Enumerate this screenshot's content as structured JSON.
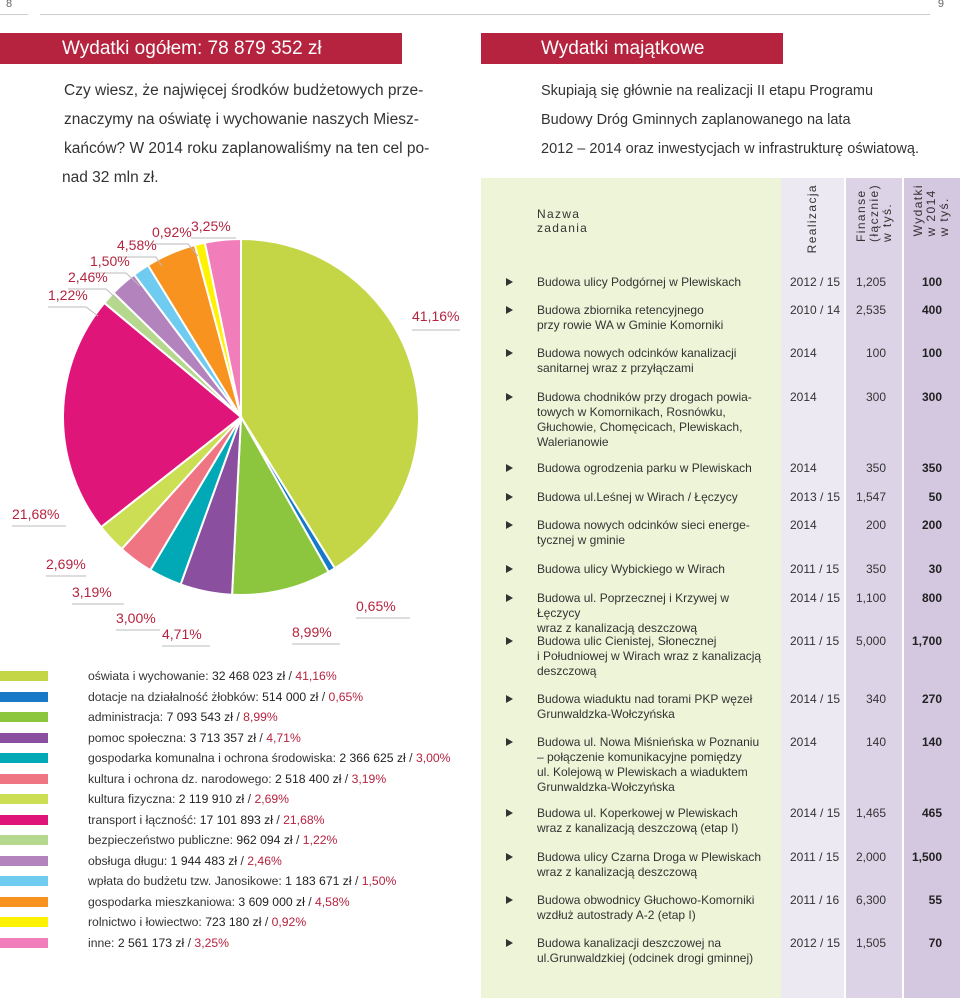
{
  "page_numbers": {
    "left": "8",
    "right": "9"
  },
  "left_title": "Wydatki ogółem: 78 879 352 zł",
  "right_title": "Wydatki majątkowe",
  "intro_left": [
    "Czy wiesz, że najwięcej środków budżetowych prze-",
    "znaczymy na oświatę i wychowanie naszych Miesz-",
    "kańców? W 2014 roku zaplanowaliśmy na ten cel po-",
    "nad 32 mln zł."
  ],
  "intro_right": [
    "Skupiają się głównie na realizacji II etapu Programu",
    "Budowy Dróg Gminnych zaplanowanego na lata",
    "2012 – 2014 oraz inwestycjach w infrastrukturę oświatową."
  ],
  "chart_data": {
    "type": "pie",
    "title": "Wydatki ogółem: 78 879 352 zł",
    "series": [
      {
        "name": "oświata i wychowanie",
        "amount": "32 468 023 zł",
        "value": 41.16,
        "label": "41,16%",
        "color": "#c4d646"
      },
      {
        "name": "dotacje na działalność żłobków",
        "amount": "514 000 zł",
        "value": 0.65,
        "label": "0,65%",
        "color": "#1779c8"
      },
      {
        "name": "administracja",
        "amount": "7 093 543 zł",
        "value": 8.99,
        "label": "8,99%",
        "color": "#8cc63f"
      },
      {
        "name": "pomoc społeczna",
        "amount": "3 713 357 zł",
        "value": 4.71,
        "label": "4,71%",
        "color": "#8b4fa0"
      },
      {
        "name": "gospodarka komunalna i ochrona środowiska",
        "amount": "2 366 625 zł",
        "value": 3.0,
        "label": "3,00%",
        "color": "#00a9b5"
      },
      {
        "name": "kultura i ochrona dz. narodowego",
        "amount": "2 518 400 zł",
        "value": 3.19,
        "label": "3,19%",
        "color": "#f07583"
      },
      {
        "name": "kultura fizyczna",
        "amount": "2 119 910 zł",
        "value": 2.69,
        "label": "2,69%",
        "color": "#ccde54"
      },
      {
        "name": "transport i łączność",
        "amount": "17 101 893 zł",
        "value": 21.68,
        "label": "21,68%",
        "color": "#e0157a"
      },
      {
        "name": "bezpieczeństwo publiczne",
        "amount": "962 094 zł",
        "value": 1.22,
        "label": "1,22%",
        "color": "#b6d88e"
      },
      {
        "name": "obsługa długu",
        "amount": "1 944 483 zł",
        "value": 2.46,
        "label": "2,46%",
        "color": "#b283bd"
      },
      {
        "name": "wpłata do budżetu tzw. Janosikowe",
        "amount": "1 183 671 zł",
        "value": 1.5,
        "label": "1,50%",
        "color": "#6fcbf0"
      },
      {
        "name": "gospodarka mieszkaniowa",
        "amount": "3 609 000 zł",
        "value": 4.58,
        "label": "4,58%",
        "color": "#f7931e"
      },
      {
        "name": "rolnictwo i łowiectwo",
        "amount": "723 180 zł",
        "value": 0.92,
        "label": "0,92%",
        "color": "#fff200"
      },
      {
        "name": "inne",
        "amount": "2 561 173 zł",
        "value": 3.25,
        "label": "3,25%",
        "color": "#f27dbb"
      }
    ]
  },
  "table": {
    "headers": {
      "name": [
        "Nazwa",
        "zadania"
      ],
      "realizacja": "Realizacja",
      "finanse": [
        "Finanse",
        "(łącznie)",
        "w tyś."
      ],
      "wydatki": [
        "Wydatki",
        "w 2014",
        "w tyś."
      ]
    },
    "colors": {
      "name_bg": "#eef4d7",
      "realizacja_bg": "#ede9f2",
      "finanse_bg": "#ddd3e6",
      "wydatki_bg": "#d4c7e0"
    },
    "rows": [
      {
        "name": [
          "Budowa ulicy Podgórnej w Plewiskach"
        ],
        "realizacja": "2012 / 15",
        "finanse": "1,205",
        "wydatki": "100"
      },
      {
        "name": [
          "Budowa zbiornika retencyjnego",
          "przy rowie WA w Gminie Komorniki"
        ],
        "realizacja": "2010 / 14",
        "finanse": "2,535",
        "wydatki": "400"
      },
      {
        "name": [
          "Budowa nowych odcinków kanalizacji",
          "sanitarnej wraz z przyłączami"
        ],
        "realizacja": "2014",
        "finanse": "100",
        "wydatki": "100"
      },
      {
        "name": [
          "Budowa chodników przy drogach powia-",
          "towych w Komornikach, Rosnówku,",
          "Głuchowie, Chomęcicach, Plewiskach,",
          "Walerianowie"
        ],
        "realizacja": "2014",
        "finanse": "300",
        "wydatki": "300"
      },
      {
        "name": [
          "Budowa ogrodzenia parku w Plewiskach"
        ],
        "realizacja": "2014",
        "finanse": "350",
        "wydatki": "350"
      },
      {
        "name": [
          "Budowa ul.Leśnej w Wirach / Łęczycy"
        ],
        "realizacja": "2013 / 15",
        "finanse": "1,547",
        "wydatki": "50"
      },
      {
        "name": [
          "Budowa nowych odcinków sieci energe-",
          "tycznej w gminie"
        ],
        "realizacja": "2014",
        "finanse": "200",
        "wydatki": "200"
      },
      {
        "name": [
          "Budowa ulicy Wybickiego w Wirach"
        ],
        "realizacja": "2011 / 15",
        "finanse": "350",
        "wydatki": "30"
      },
      {
        "name": [
          "Budowa ul. Poprzecznej i Krzywej w Łęczycy",
          "wraz z kanalizacją deszczową"
        ],
        "realizacja": "2014 / 15",
        "finanse": "1,100",
        "wydatki": "800"
      },
      {
        "name": [
          "Budowa ulic Cienistej, Słonecznej",
          "i Południowej w Wirach wraz z kanalizacją",
          "deszczową"
        ],
        "realizacja": "2011 / 15",
        "finanse": "5,000",
        "wydatki": "1,700"
      },
      {
        "name": [
          "Budowa wiaduktu nad torami PKP węzeł",
          "Grunwaldzka-Wołczyńska"
        ],
        "realizacja": "2014 / 15",
        "finanse": "340",
        "wydatki": "270"
      },
      {
        "name": [
          "Budowa ul. Nowa Miśnieńska w Poznaniu",
          "– połączenie komunikacyjne pomiędzy",
          "ul. Kolejową w Plewiskach a wiaduktem",
          "Grunwaldzka-Wołczyńska"
        ],
        "realizacja": "2014",
        "finanse": "140",
        "wydatki": "140"
      },
      {
        "name": [
          "Budowa ul. Koperkowej w Plewiskach",
          "wraz z kanalizacją deszczową (etap I)"
        ],
        "realizacja": "2014 / 15",
        "finanse": "1,465",
        "wydatki": "465"
      },
      {
        "name": [
          "Budowa ulicy Czarna Droga w Plewiskach",
          "wraz z kanalizacją deszczową"
        ],
        "realizacja": "2011 / 15",
        "finanse": "2,000",
        "wydatki": "1,500"
      },
      {
        "name": [
          "Budowa obwodnicy Głuchowo-Komorniki",
          "wzdłuż autostrady A-2 (etap I)"
        ],
        "realizacja": "2011 / 16",
        "finanse": "6,300",
        "wydatki": "55"
      },
      {
        "name": [
          "Budowa kanalizacji deszczowej na",
          "ul.Grunwaldzkiej (odcinek drogi gminnej)"
        ],
        "realizacja": "2012 / 15",
        "finanse": "1,505",
        "wydatki": "70"
      }
    ]
  }
}
